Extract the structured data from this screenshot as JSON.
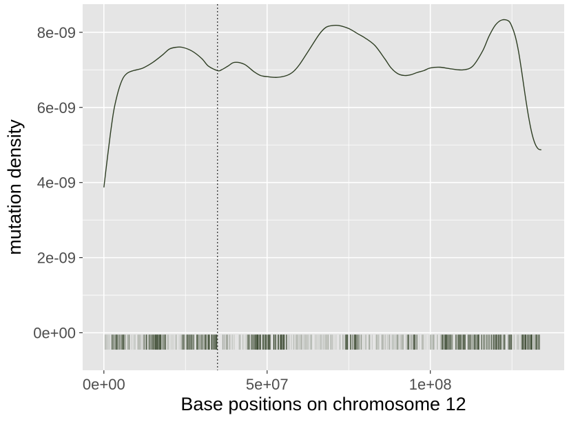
{
  "chart_data": {
    "type": "line",
    "xlabel": "Base positions on chromosome 12",
    "ylabel": "mutation density",
    "xlim": [
      -6500000,
      141000000
    ],
    "ylim": [
      -1e-09,
      8.75e-09
    ],
    "x_ticks": [
      {
        "value": 0,
        "label": "0e+00"
      },
      {
        "value": 50000000,
        "label": "5e+07"
      },
      {
        "value": 100000000,
        "label": "1e+08"
      }
    ],
    "y_ticks": [
      {
        "value": 0,
        "label": "0e+00"
      },
      {
        "value": 2e-09,
        "label": "2e-09"
      },
      {
        "value": 4e-09,
        "label": "4e-09"
      },
      {
        "value": 6e-09,
        "label": "6e-09"
      },
      {
        "value": 8e-09,
        "label": "8e-09"
      }
    ],
    "grid": true,
    "line_color": "#2d3d22",
    "rug_color": "#2d3d22",
    "panel_background": "#e5e5e5",
    "grid_color": "#ffffff",
    "vline": {
      "x": 34800000,
      "style": "dotted",
      "color": "#333333"
    },
    "density_curve": {
      "x": [
        0,
        1000000,
        2000000,
        3000000,
        4000000,
        5000000,
        6000000,
        7000000,
        8000000,
        9000000,
        10000000,
        12000000,
        15000000,
        18000000,
        20000000,
        22000000,
        24000000,
        27000000,
        30000000,
        32000000,
        34800000,
        36000000,
        38000000,
        40000000,
        43000000,
        46000000,
        48000000,
        50000000,
        53000000,
        56000000,
        58000000,
        60000000,
        63000000,
        66000000,
        68000000,
        70000000,
        72000000,
        75000000,
        78000000,
        80000000,
        83000000,
        86000000,
        88000000,
        90000000,
        92000000,
        94000000,
        96000000,
        98000000,
        100000000,
        103000000,
        106000000,
        110000000,
        113000000,
        116000000,
        118000000,
        120000000,
        122000000,
        124000000,
        125000000,
        126000000,
        127000000,
        128000000,
        129000000,
        130000000,
        131000000,
        132000000,
        133000000,
        134000000
      ],
      "y": [
        3.87e-09,
        4.6e-09,
        5.3e-09,
        5.9e-09,
        6.3e-09,
        6.6e-09,
        6.8e-09,
        6.9e-09,
        6.95e-09,
        6.98e-09,
        7e-09,
        7.05e-09,
        7.2e-09,
        7.4e-09,
        7.55e-09,
        7.6e-09,
        7.6e-09,
        7.5e-09,
        7.3e-09,
        7.1e-09,
        6.98e-09,
        7e-09,
        7.1e-09,
        7.2e-09,
        7.15e-09,
        6.95e-09,
        6.85e-09,
        6.82e-09,
        6.8e-09,
        6.85e-09,
        6.95e-09,
        7.15e-09,
        7.55e-09,
        7.95e-09,
        8.13e-09,
        8.18e-09,
        8.18e-09,
        8.1e-09,
        7.95e-09,
        7.85e-09,
        7.65e-09,
        7.3e-09,
        7.05e-09,
        6.9e-09,
        6.85e-09,
        6.87e-09,
        6.93e-09,
        6.98e-09,
        7.05e-09,
        7.07e-09,
        7.03e-09,
        7e-09,
        7.1e-09,
        7.5e-09,
        7.9e-09,
        8.2e-09,
        8.33e-09,
        8.3e-09,
        8.15e-09,
        7.9e-09,
        7.5e-09,
        6.95e-09,
        6.35e-09,
        5.8e-09,
        5.35e-09,
        5.05e-09,
        4.9e-09,
        4.87e-09
      ]
    },
    "rug": {
      "ymin": -4.5e-10,
      "ymax": -5e-11,
      "x_start": 0,
      "x_end": 134000000,
      "gaps": [
        [
          34900000,
          36000000
        ]
      ],
      "dense_ranges": [
        [
          2000000,
          8000000
        ],
        [
          12000000,
          19000000
        ],
        [
          24000000,
          34500000
        ],
        [
          44000000,
          56000000
        ],
        [
          74000000,
          79000000
        ],
        [
          93000000,
          96000000
        ],
        [
          103000000,
          125000000
        ],
        [
          128000000,
          134000000
        ]
      ]
    }
  }
}
